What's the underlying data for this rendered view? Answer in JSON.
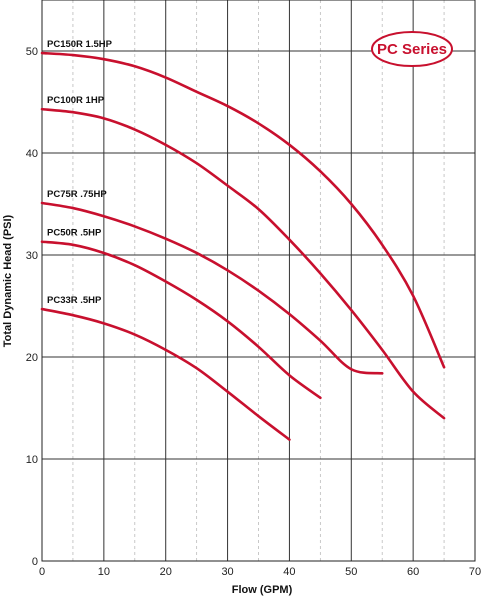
{
  "chart_data": {
    "type": "line",
    "title": "",
    "badge": "PC Series",
    "xlabel": "Flow (GPM)",
    "ylabel": "Total Dynamic Head (PSI)",
    "xlim": [
      0,
      70
    ],
    "ylim": [
      0,
      55
    ],
    "xticks": [
      0,
      10,
      20,
      30,
      40,
      50,
      60,
      70
    ],
    "yticks": [
      0,
      10,
      20,
      30,
      40,
      50
    ],
    "grid": true,
    "minor_x_grid_step": 5,
    "line_color": "#c8102e",
    "series": [
      {
        "name": "PC150R  1.5HP",
        "points": [
          [
            0,
            49.8
          ],
          [
            5,
            49.6
          ],
          [
            10,
            49.2
          ],
          [
            15,
            48.5
          ],
          [
            20,
            47.4
          ],
          [
            25,
            46.0
          ],
          [
            30,
            44.6
          ],
          [
            35,
            42.9
          ],
          [
            40,
            40.8
          ],
          [
            45,
            38.2
          ],
          [
            50,
            35.0
          ],
          [
            55,
            31.0
          ],
          [
            60,
            26.0
          ],
          [
            65,
            19.0
          ]
        ]
      },
      {
        "name": "PC100R  1HP",
        "points": [
          [
            0,
            44.3
          ],
          [
            5,
            44.0
          ],
          [
            10,
            43.4
          ],
          [
            15,
            42.3
          ],
          [
            20,
            40.8
          ],
          [
            25,
            39.0
          ],
          [
            30,
            36.8
          ],
          [
            35,
            34.5
          ],
          [
            40,
            31.5
          ],
          [
            45,
            28.2
          ],
          [
            50,
            24.6
          ],
          [
            55,
            20.7
          ],
          [
            60,
            16.6
          ],
          [
            65,
            14.0
          ]
        ]
      },
      {
        "name": "PC75R  .75HP",
        "points": [
          [
            0,
            35.1
          ],
          [
            5,
            34.6
          ],
          [
            10,
            33.8
          ],
          [
            15,
            32.8
          ],
          [
            20,
            31.6
          ],
          [
            25,
            30.2
          ],
          [
            30,
            28.5
          ],
          [
            35,
            26.5
          ],
          [
            40,
            24.2
          ],
          [
            45,
            21.6
          ],
          [
            50,
            18.8
          ],
          [
            55,
            18.4
          ]
        ]
      },
      {
        "name": "PC50R  .5HP",
        "points": [
          [
            0,
            31.3
          ],
          [
            5,
            31.0
          ],
          [
            10,
            30.2
          ],
          [
            15,
            29.0
          ],
          [
            20,
            27.4
          ],
          [
            25,
            25.6
          ],
          [
            30,
            23.5
          ],
          [
            35,
            21.0
          ],
          [
            40,
            18.2
          ],
          [
            45,
            16.0
          ]
        ]
      },
      {
        "name": "PC33R  .5HP",
        "points": [
          [
            0,
            24.7
          ],
          [
            5,
            24.1
          ],
          [
            10,
            23.3
          ],
          [
            15,
            22.2
          ],
          [
            20,
            20.7
          ],
          [
            25,
            18.9
          ],
          [
            30,
            16.6
          ],
          [
            35,
            14.2
          ],
          [
            40,
            11.9
          ]
        ]
      }
    ]
  }
}
